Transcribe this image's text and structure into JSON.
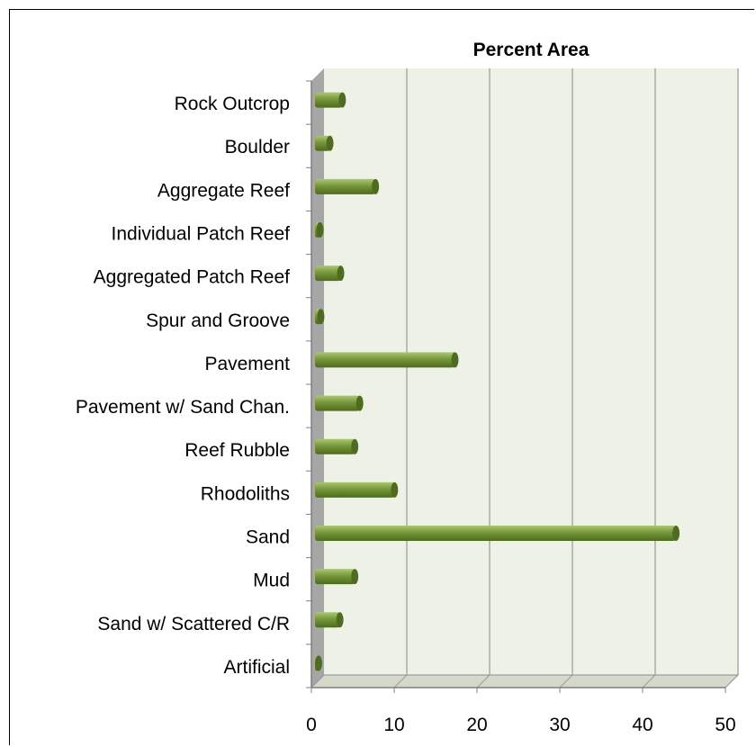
{
  "chart_data": {
    "type": "bar",
    "orientation": "horizontal",
    "title": "Percent Area",
    "xlabel": "",
    "ylabel": "",
    "categories": [
      "Rock Outcrop",
      "Boulder",
      "Aggregate Reef",
      "Individual Patch Reef",
      "Aggregated Patch Reef",
      "Spur and Groove",
      "Pavement",
      "Pavement w/ Sand Chan.",
      "Reef Rubble",
      "Rhodoliths",
      "Sand",
      "Mud",
      "Sand w/ Scattered C/R",
      "Artificial"
    ],
    "values": [
      3.3,
      1.8,
      7.3,
      0.6,
      3.1,
      0.7,
      16.9,
      5.4,
      4.8,
      9.6,
      43.6,
      4.8,
      3.0,
      0.3
    ],
    "xlim": [
      0,
      50
    ],
    "xticks": [
      0,
      10,
      20,
      30,
      40,
      50
    ],
    "grid": true,
    "legend": "none",
    "colors": {
      "bar": "#76973a",
      "bar_dark": "#4e6b1f",
      "bar_light": "#a9c873",
      "plot_bg": "#eef2e6",
      "wall": "#a6a6a6",
      "grid": "#9a9a9a"
    }
  }
}
